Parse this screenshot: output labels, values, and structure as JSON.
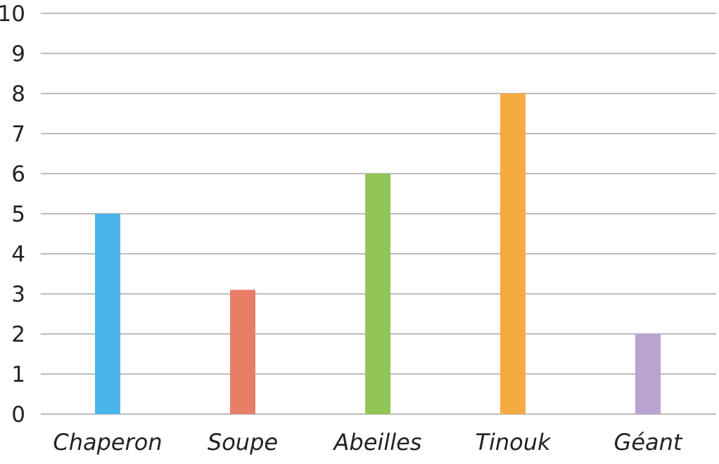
{
  "chart_data": {
    "type": "bar",
    "categories": [
      "Chaperon",
      "Soupe",
      "Abeilles",
      "Tinouk",
      "Géant"
    ],
    "values": [
      5,
      3.1,
      6,
      8,
      2
    ],
    "colors": [
      "#4ab5ea",
      "#e87d68",
      "#92c456",
      "#f6ab41",
      "#b9a3d0"
    ],
    "title": "",
    "xlabel": "",
    "ylabel": "",
    "ylim": [
      0,
      10
    ],
    "yticks": [
      0,
      1,
      2,
      3,
      4,
      5,
      6,
      7,
      8,
      9,
      10
    ],
    "grid": true,
    "legend": "none"
  }
}
